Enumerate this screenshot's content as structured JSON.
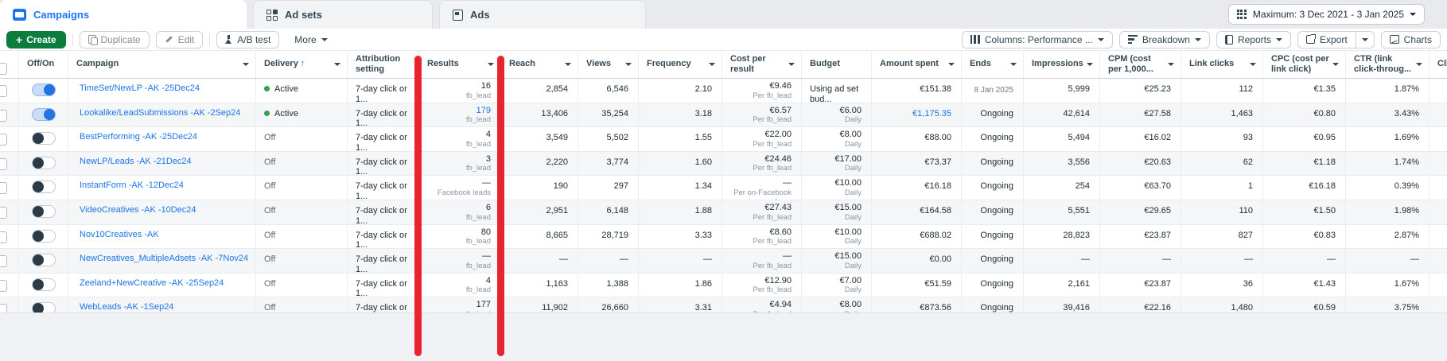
{
  "tabs": [
    {
      "label": "Campaigns",
      "active": true
    },
    {
      "label": "Ad sets",
      "active": false
    },
    {
      "label": "Ads",
      "active": false
    }
  ],
  "date_range": "Maximum: 3 Dec 2021 - 3 Jan 2025",
  "toolbar": {
    "create": "Create",
    "duplicate": "Duplicate",
    "edit": "Edit",
    "ab_test": "A/B test",
    "more": "More",
    "columns": "Columns: Performance ...",
    "breakdown": "Breakdown",
    "reports": "Reports",
    "export": "Export",
    "charts": "Charts"
  },
  "table": {
    "columns": [
      {
        "label": "Off/On",
        "sortable": false
      },
      {
        "label": "Campaign",
        "sortable": true
      },
      {
        "label": "Delivery",
        "sortable": true,
        "sorted_asc": true
      },
      {
        "label": "Attribution setting",
        "sortable": false
      },
      {
        "label": "Results",
        "sortable": true
      },
      {
        "label": "Reach",
        "sortable": true
      },
      {
        "label": "Views",
        "sortable": true
      },
      {
        "label": "Frequency",
        "sortable": true
      },
      {
        "label": "Cost per result",
        "sortable": true
      },
      {
        "label": "Budget",
        "sortable": false
      },
      {
        "label": "Amount spent",
        "sortable": true
      },
      {
        "label": "Ends",
        "sortable": true
      },
      {
        "label": "Impressions",
        "sortable": true
      },
      {
        "label": "CPM (cost per 1,000...",
        "sortable": true
      },
      {
        "label": "Link clicks",
        "sortable": true
      },
      {
        "label": "CPC (cost per link click)",
        "sortable": true
      },
      {
        "label": "CTR (link click-throug...",
        "sortable": true
      },
      {
        "label": "Clicks",
        "sortable": false
      }
    ],
    "rows": [
      {
        "on": true,
        "name": "TimeSet/NewLP -AK -25Dec24",
        "delivery": "Active",
        "active": true,
        "attribution": "7-day click or 1...",
        "results": "16",
        "results_sub": "fb_lead",
        "results_link": false,
        "reach": "2,854",
        "views": "6,546",
        "frequency": "2.10",
        "cost_per_result": "€9.46",
        "cost_sub": "Per fb_lead",
        "budget": "Using ad set bud...",
        "budget_sub": "",
        "budget_left": true,
        "amount_spent": "€151.38",
        "spent_link": false,
        "ends": "8 Jan 2025",
        "ends_small": true,
        "impressions": "5,999",
        "cpm": "€25.23",
        "link_clicks": "112",
        "cpc": "€1.35",
        "ctr": "1.87%"
      },
      {
        "on": true,
        "name": "Lookalike/LeadSubmissions -AK -2Sep24",
        "delivery": "Active",
        "active": true,
        "attribution": "7-day click or 1...",
        "results": "179",
        "results_sub": "fb_lead",
        "results_link": true,
        "reach": "13,406",
        "views": "35,254",
        "frequency": "3.18",
        "cost_per_result": "€6.57",
        "cost_sub": "Per fb_lead",
        "budget": "€6.00",
        "budget_sub": "Daily",
        "amount_spent": "€1,175.35",
        "spent_link": true,
        "ends": "Ongoing",
        "impressions": "42,614",
        "cpm": "€27.58",
        "link_clicks": "1,463",
        "cpc": "€0.80",
        "ctr": "3.43%"
      },
      {
        "on": false,
        "name": "BestPerforming -AK -25Dec24",
        "delivery": "Off",
        "active": false,
        "attribution": "7-day click or 1...",
        "results": "4",
        "results_sub": "fb_lead",
        "reach": "3,549",
        "views": "5,502",
        "frequency": "1.55",
        "cost_per_result": "€22.00",
        "cost_sub": "Per fb_lead",
        "budget": "€8.00",
        "budget_sub": "Daily",
        "amount_spent": "€88.00",
        "ends": "Ongoing",
        "impressions": "5,494",
        "cpm": "€16.02",
        "link_clicks": "93",
        "cpc": "€0.95",
        "ctr": "1.69%"
      },
      {
        "on": false,
        "name": "NewLP/Leads -AK -21Dec24",
        "delivery": "Off",
        "active": false,
        "attribution": "7-day click or 1...",
        "results": "3",
        "results_sub": "fb_lead",
        "reach": "2,220",
        "views": "3,774",
        "frequency": "1.60",
        "cost_per_result": "€24.46",
        "cost_sub": "Per fb_lead",
        "budget": "€17.00",
        "budget_sub": "Daily",
        "amount_spent": "€73.37",
        "ends": "Ongoing",
        "impressions": "3,556",
        "cpm": "€20.63",
        "link_clicks": "62",
        "cpc": "€1.18",
        "ctr": "1.74%"
      },
      {
        "on": false,
        "name": "InstantForm -AK -12Dec24",
        "delivery": "Off",
        "active": false,
        "attribution": "7-day click or 1...",
        "results": "—",
        "results_sub": "Facebook leads",
        "reach": "190",
        "views": "297",
        "frequency": "1.34",
        "cost_per_result": "—",
        "cost_sub": "Per on-Facebook lea...",
        "budget": "€10.00",
        "budget_sub": "Daily",
        "amount_spent": "€16.18",
        "ends": "Ongoing",
        "impressions": "254",
        "cpm": "€63.70",
        "link_clicks": "1",
        "cpc": "€16.18",
        "ctr": "0.39%"
      },
      {
        "on": false,
        "name": "VideoCreatives -AK -10Dec24",
        "delivery": "Off",
        "active": false,
        "attribution": "7-day click or 1...",
        "results": "6",
        "results_sub": "fb_lead",
        "reach": "2,951",
        "views": "6,148",
        "frequency": "1.88",
        "cost_per_result": "€27.43",
        "cost_sub": "Per fb_lead",
        "budget": "€15.00",
        "budget_sub": "Daily",
        "amount_spent": "€164.58",
        "ends": "Ongoing",
        "impressions": "5,551",
        "cpm": "€29.65",
        "link_clicks": "110",
        "cpc": "€1.50",
        "ctr": "1.98%"
      },
      {
        "on": false,
        "name": "Nov10Creatives -AK",
        "delivery": "Off",
        "active": false,
        "attribution": "7-day click or 1...",
        "results": "80",
        "results_sub": "fb_lead",
        "reach": "8,665",
        "views": "28,719",
        "frequency": "3.33",
        "cost_per_result": "€8.60",
        "cost_sub": "Per fb_lead",
        "budget": "€10.00",
        "budget_sub": "Daily",
        "amount_spent": "€688.02",
        "ends": "Ongoing",
        "impressions": "28,823",
        "cpm": "€23.87",
        "link_clicks": "827",
        "cpc": "€0.83",
        "ctr": "2.87%"
      },
      {
        "on": false,
        "name": "NewCreatives_MultipleAdsets -AK -7Nov24",
        "delivery": "Off",
        "active": false,
        "attribution": "7-day click or 1...",
        "results": "—",
        "results_sub": "fb_lead",
        "reach": "—",
        "views": "—",
        "frequency": "—",
        "cost_per_result": "—",
        "cost_sub": "Per fb_lead",
        "budget": "€15.00",
        "budget_sub": "Daily",
        "amount_spent": "€0.00",
        "ends": "Ongoing",
        "impressions": "—",
        "cpm": "—",
        "link_clicks": "—",
        "cpc": "—",
        "ctr": "—"
      },
      {
        "on": false,
        "name": "Zeeland+NewCreative -AK -25Sep24",
        "delivery": "Off",
        "active": false,
        "attribution": "7-day click or 1...",
        "results": "4",
        "results_sub": "fb_lead",
        "reach": "1,163",
        "views": "1,388",
        "frequency": "1.86",
        "cost_per_result": "€12.90",
        "cost_sub": "Per fb_lead",
        "budget": "€7.00",
        "budget_sub": "Daily",
        "amount_spent": "€51.59",
        "ends": "Ongoing",
        "impressions": "2,161",
        "cpm": "€23.87",
        "link_clicks": "36",
        "cpc": "€1.43",
        "ctr": "1.67%"
      },
      {
        "on": false,
        "name": "WebLeads -AK -1Sep24",
        "delivery": "Off",
        "active": false,
        "attribution": "7-day click or 1...",
        "results": "177",
        "results_sub": "fb_lead",
        "reach": "11,902",
        "views": "26,660",
        "frequency": "3.31",
        "cost_per_result": "€4.94",
        "cost_sub": "Per fb_lead",
        "budget": "€8.00",
        "budget_sub": "Daily",
        "amount_spent": "€873.56",
        "ends": "Ongoing",
        "impressions": "39,416",
        "cpm": "€22.16",
        "link_clicks": "1,480",
        "cpc": "€0.59",
        "ctr": "3.75%"
      }
    ]
  },
  "colors": {
    "accent_blue": "#1877f2",
    "link_blue": "#1b74e4",
    "create_green": "#0c7c3f",
    "active_dot_green": "#31a24c",
    "annotation_red": "#e8252e"
  }
}
